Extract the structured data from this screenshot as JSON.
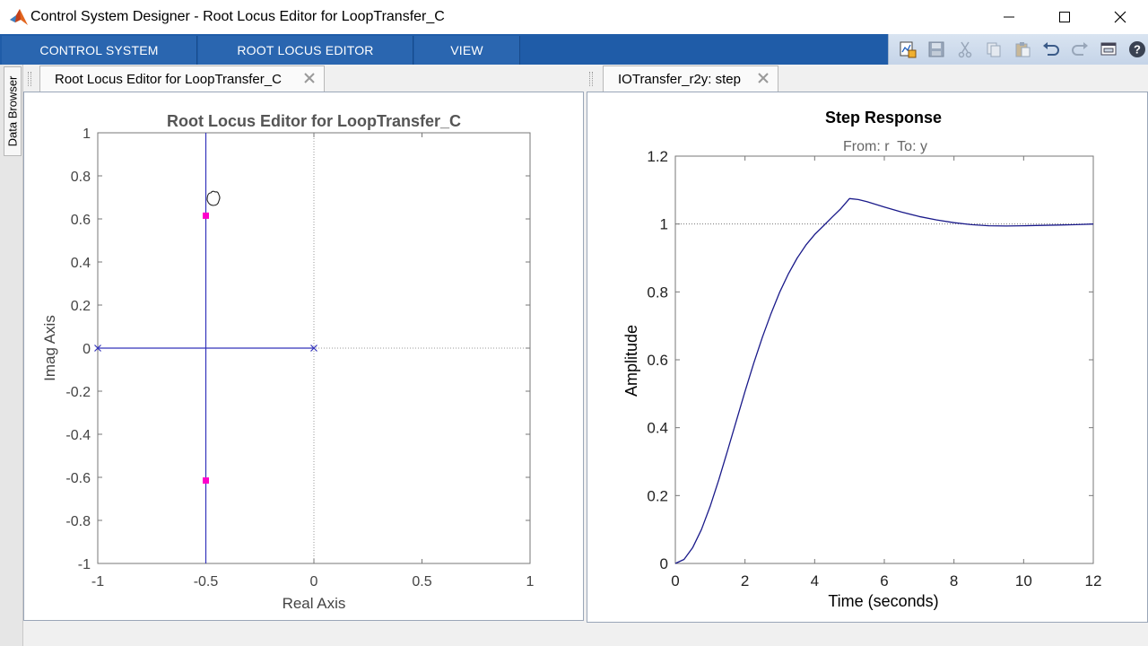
{
  "window": {
    "title": "Control System Designer - Root Locus Editor for LoopTransfer_C"
  },
  "ribbon": {
    "tabs": [
      {
        "label": "CONTROL SYSTEM"
      },
      {
        "label": "ROOT LOCUS EDITOR"
      },
      {
        "label": "VIEW"
      }
    ],
    "quick_access_icons": [
      "new-figure-icon",
      "save-icon",
      "cut-icon",
      "copy-icon",
      "paste-icon",
      "undo-icon",
      "redo-icon",
      "layout-icon",
      "help-icon"
    ]
  },
  "side_panel": {
    "label": "Data Browser"
  },
  "left_doc": {
    "tab_label": "Root Locus Editor for LoopTransfer_C"
  },
  "right_doc": {
    "tab_label": "IOTransfer_r2y: step"
  },
  "chart_data": [
    {
      "type": "scatter",
      "title": "Root Locus Editor for LoopTransfer_C",
      "xlabel": "Real Axis",
      "ylabel": "Imag Axis",
      "xlim": [
        -1,
        1
      ],
      "ylim": [
        -1,
        1
      ],
      "xticks": [
        "-1",
        "-0.5",
        "0",
        "0.5",
        "1"
      ],
      "yticks": [
        "1",
        "0.8",
        "0.6",
        "0.4",
        "0.2",
        "0",
        "-0.2",
        "-0.4",
        "-0.6",
        "-0.8",
        "-1"
      ],
      "open_loop_poles": [
        [
          -1,
          0
        ],
        [
          0,
          0
        ]
      ],
      "closed_loop_poles": [
        [
          -0.5,
          0.615
        ],
        [
          -0.5,
          -0.615
        ]
      ],
      "locus_segments": [
        {
          "x": [
            -1,
            0
          ],
          "y": [
            0,
            0
          ]
        },
        {
          "x": [
            -0.5,
            -0.5
          ],
          "y": [
            -1,
            1
          ]
        }
      ],
      "colors": {
        "locus": "#3333bb",
        "closed_loop": "#ff00cc"
      }
    },
    {
      "type": "line",
      "title": "Step Response",
      "subtitle": "From: r  To: y",
      "xlabel": "Time (seconds)",
      "ylabel": "Amplitude",
      "xlim": [
        0,
        12
      ],
      "ylim": [
        0,
        1.2
      ],
      "xticks": [
        "0",
        "2",
        "4",
        "6",
        "8",
        "10",
        "12"
      ],
      "yticks": [
        "1.2",
        "1",
        "0.8",
        "0.6",
        "0.4",
        "0.2",
        "0"
      ],
      "reference": 1,
      "x": [
        0,
        0.25,
        0.5,
        0.75,
        1,
        1.25,
        1.5,
        1.75,
        2,
        2.25,
        2.5,
        2.75,
        3,
        3.25,
        3.5,
        3.75,
        4,
        4.25,
        4.5,
        4.75,
        5,
        5.25,
        5.5,
        5.75,
        6,
        6.5,
        7,
        7.5,
        8,
        8.5,
        9,
        9.5,
        10,
        10.5,
        11,
        11.5,
        12
      ],
      "values": [
        0,
        0.012,
        0.047,
        0.1,
        0.168,
        0.247,
        0.333,
        0.42,
        0.507,
        0.59,
        0.667,
        0.737,
        0.8,
        0.854,
        0.9,
        0.938,
        0.969,
        0.994,
        1.02,
        1.045,
        1.075,
        1.072,
        1.066,
        1.058,
        1.05,
        1.035,
        1.022,
        1.012,
        1.004,
        0.998,
        0.995,
        0.994,
        0.995,
        0.996,
        0.997,
        0.998,
        1.0
      ],
      "colors": {
        "line": "#1a1a8a"
      }
    }
  ]
}
